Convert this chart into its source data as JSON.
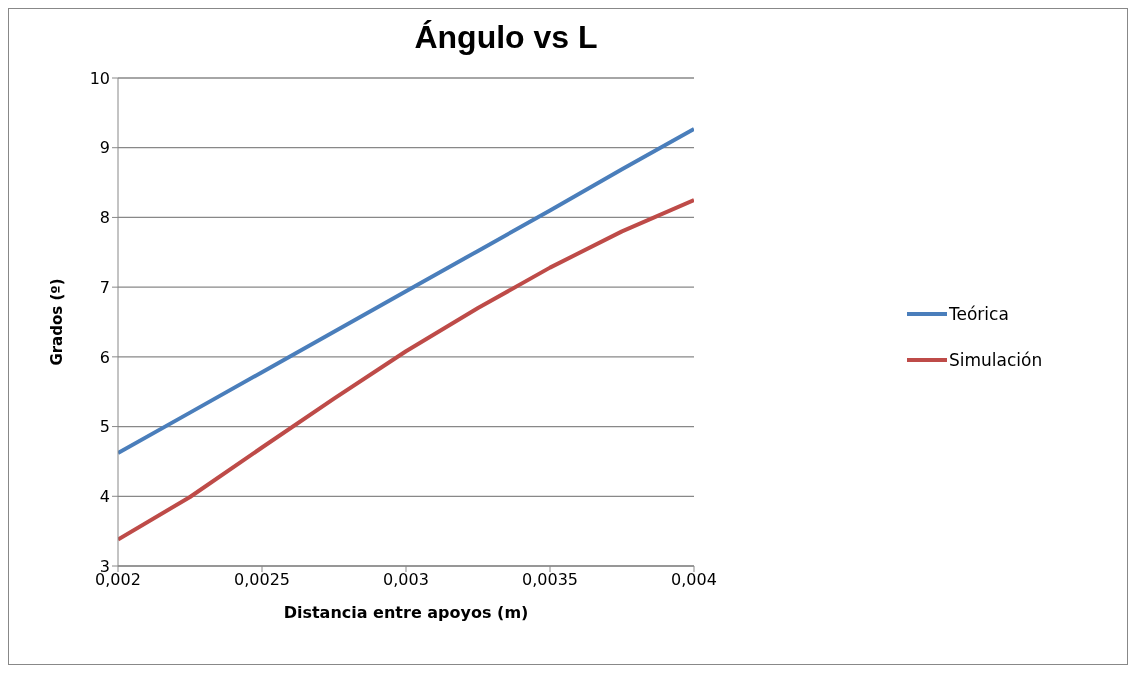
{
  "chart_data": {
    "type": "line",
    "title": "Ángulo vs L",
    "xlabel": "Distancia  entre apoyos (m)",
    "ylabel": "Grados (º)",
    "x": [
      0.002,
      0.00225,
      0.0025,
      0.00275,
      0.003,
      0.00325,
      0.0035,
      0.00375,
      0.004
    ],
    "series": [
      {
        "name": "Teórica",
        "color": "#4a7ebb",
        "values": [
          4.62,
          5.2,
          5.78,
          6.36,
          6.94,
          7.52,
          8.1,
          8.69,
          9.27
        ]
      },
      {
        "name": "Simulación",
        "color": "#be4b48",
        "values": [
          3.38,
          3.99,
          4.7,
          5.4,
          6.08,
          6.7,
          7.28,
          7.8,
          8.25
        ]
      }
    ],
    "xlim": [
      0.002,
      0.004
    ],
    "xticks": [
      {
        "value": 0.002,
        "label": "0,002"
      },
      {
        "value": 0.0025,
        "label": "0,0025"
      },
      {
        "value": 0.003,
        "label": "0,003"
      },
      {
        "value": 0.0035,
        "label": "0,0035"
      },
      {
        "value": 0.004,
        "label": "0,004"
      }
    ],
    "ylim": [
      3,
      10
    ],
    "yticks": [
      3,
      4,
      5,
      6,
      7,
      8,
      9,
      10
    ],
    "grid": "y",
    "legend": "right",
    "marker": "none",
    "line_style": "solid"
  }
}
